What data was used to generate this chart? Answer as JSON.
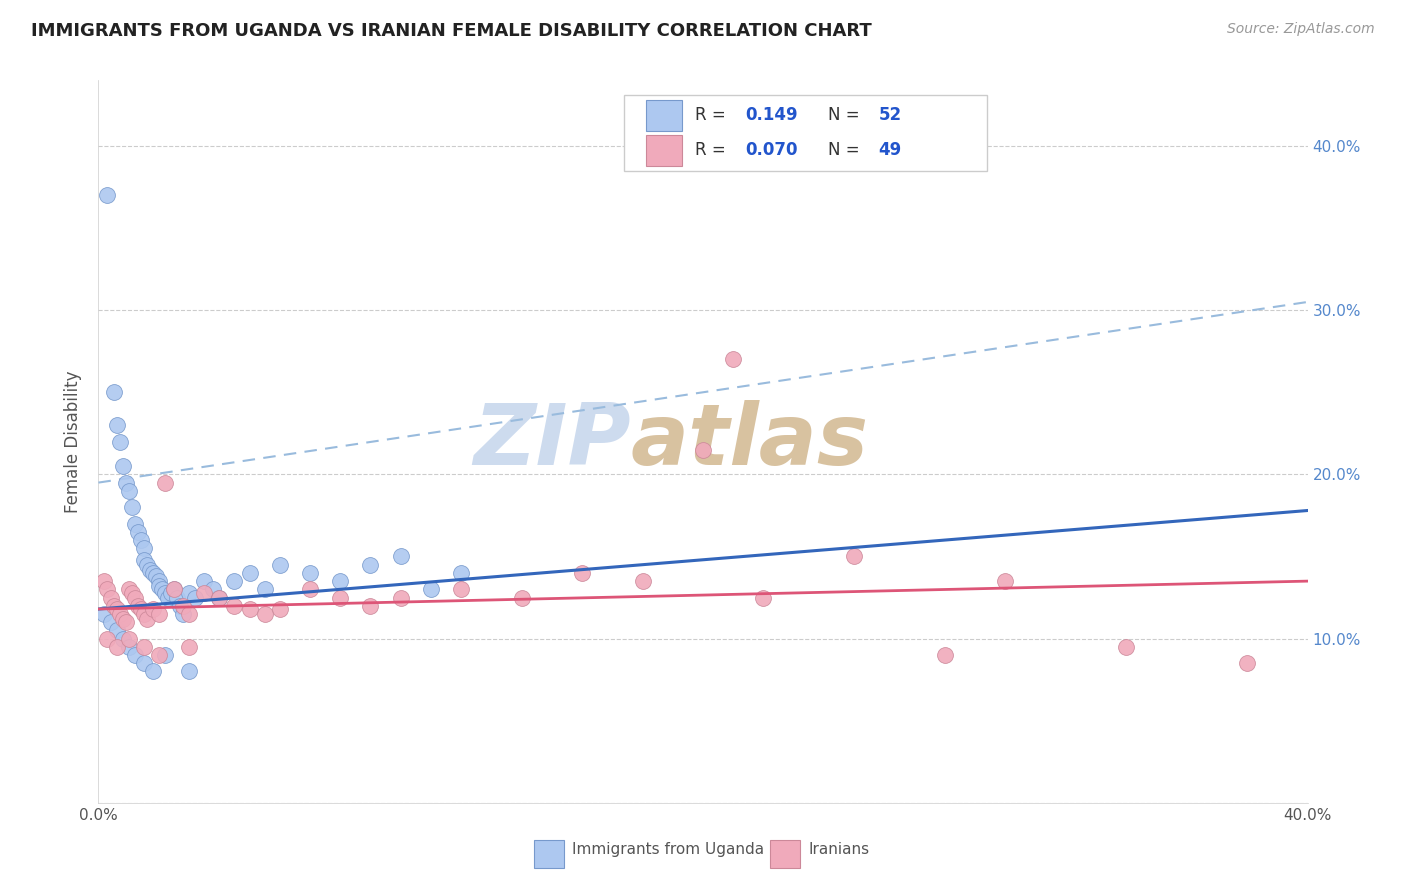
{
  "title": "IMMIGRANTS FROM UGANDA VS IRANIAN FEMALE DISABILITY CORRELATION CHART",
  "source": "Source: ZipAtlas.com",
  "ylabel": "Female Disability",
  "xlim": [
    0.0,
    0.4
  ],
  "ylim": [
    0.0,
    0.44
  ],
  "color_uganda": "#adc8f0",
  "color_iran": "#f0aabb",
  "color_uganda_line": "#3366bb",
  "color_iran_line": "#dd5577",
  "color_dashed": "#99bbdd",
  "watermark_color_zip": "#b8cce8",
  "watermark_color_atlas": "#c8a878",
  "uganda_x": [
    0.003,
    0.005,
    0.006,
    0.007,
    0.008,
    0.009,
    0.01,
    0.011,
    0.012,
    0.013,
    0.014,
    0.015,
    0.015,
    0.016,
    0.017,
    0.018,
    0.019,
    0.02,
    0.02,
    0.021,
    0.022,
    0.023,
    0.024,
    0.025,
    0.026,
    0.027,
    0.028,
    0.03,
    0.032,
    0.035,
    0.038,
    0.04,
    0.045,
    0.05,
    0.055,
    0.06,
    0.07,
    0.08,
    0.09,
    0.1,
    0.11,
    0.12,
    0.002,
    0.004,
    0.006,
    0.008,
    0.01,
    0.012,
    0.015,
    0.018,
    0.022,
    0.03
  ],
  "uganda_y": [
    0.37,
    0.25,
    0.23,
    0.22,
    0.205,
    0.195,
    0.19,
    0.18,
    0.17,
    0.165,
    0.16,
    0.155,
    0.148,
    0.145,
    0.142,
    0.14,
    0.138,
    0.135,
    0.132,
    0.13,
    0.128,
    0.125,
    0.128,
    0.13,
    0.125,
    0.12,
    0.115,
    0.128,
    0.125,
    0.135,
    0.13,
    0.125,
    0.135,
    0.14,
    0.13,
    0.145,
    0.14,
    0.135,
    0.145,
    0.15,
    0.13,
    0.14,
    0.115,
    0.11,
    0.105,
    0.1,
    0.095,
    0.09,
    0.085,
    0.08,
    0.09,
    0.08
  ],
  "iran_x": [
    0.002,
    0.003,
    0.004,
    0.005,
    0.006,
    0.007,
    0.008,
    0.009,
    0.01,
    0.011,
    0.012,
    0.013,
    0.014,
    0.015,
    0.016,
    0.018,
    0.02,
    0.022,
    0.025,
    0.028,
    0.03,
    0.035,
    0.04,
    0.045,
    0.05,
    0.055,
    0.06,
    0.07,
    0.08,
    0.09,
    0.1,
    0.12,
    0.14,
    0.16,
    0.18,
    0.2,
    0.22,
    0.25,
    0.28,
    0.3,
    0.34,
    0.38,
    0.003,
    0.006,
    0.01,
    0.015,
    0.02,
    0.03,
    0.21
  ],
  "iran_y": [
    0.135,
    0.13,
    0.125,
    0.12,
    0.118,
    0.115,
    0.112,
    0.11,
    0.13,
    0.128,
    0.125,
    0.12,
    0.118,
    0.115,
    0.112,
    0.118,
    0.115,
    0.195,
    0.13,
    0.12,
    0.115,
    0.128,
    0.125,
    0.12,
    0.118,
    0.115,
    0.118,
    0.13,
    0.125,
    0.12,
    0.125,
    0.13,
    0.125,
    0.14,
    0.135,
    0.215,
    0.125,
    0.15,
    0.09,
    0.135,
    0.095,
    0.085,
    0.1,
    0.095,
    0.1,
    0.095,
    0.09,
    0.095,
    0.27
  ],
  "blue_line_x": [
    0.0,
    0.4
  ],
  "blue_line_y_start": 0.118,
  "blue_line_y_end": 0.178,
  "dashed_line_x": [
    0.0,
    0.4
  ],
  "dashed_line_y_start": 0.195,
  "dashed_line_y_end": 0.305,
  "pink_line_x": [
    0.0,
    0.4
  ],
  "pink_line_y_start": 0.118,
  "pink_line_y_end": 0.135
}
